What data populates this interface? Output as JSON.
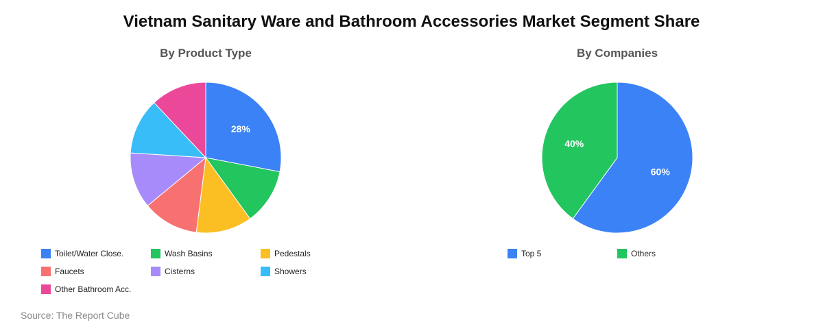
{
  "title": "Vietnam Sanitary Ware and Bathroom Accessories Market Segment Share",
  "source": "Source: The Report Cube",
  "chart_data": [
    {
      "type": "pie",
      "title": "By Product Type",
      "categories": [
        "Toilet/Water Close.",
        "Wash Basins",
        "Pedestals",
        "Faucets",
        "Cisterns",
        "Showers",
        "Other Bathroom Acc."
      ],
      "values": [
        28,
        12,
        12,
        12,
        12,
        12,
        12
      ],
      "labels": [
        "28%",
        "",
        "",
        "",
        "",
        "",
        ""
      ],
      "colors": [
        "#3b82f6",
        "#22c55e",
        "#fbbf24",
        "#f87171",
        "#a78bfa",
        "#38bdf8",
        "#ec4899"
      ],
      "legend_position": "bottom"
    },
    {
      "type": "pie",
      "title": "By Companies",
      "categories": [
        "Top 5",
        "Others"
      ],
      "values": [
        60,
        40
      ],
      "labels": [
        "60%",
        "40%"
      ],
      "colors": [
        "#3b82f6",
        "#22c55e"
      ],
      "legend_position": "bottom"
    }
  ]
}
